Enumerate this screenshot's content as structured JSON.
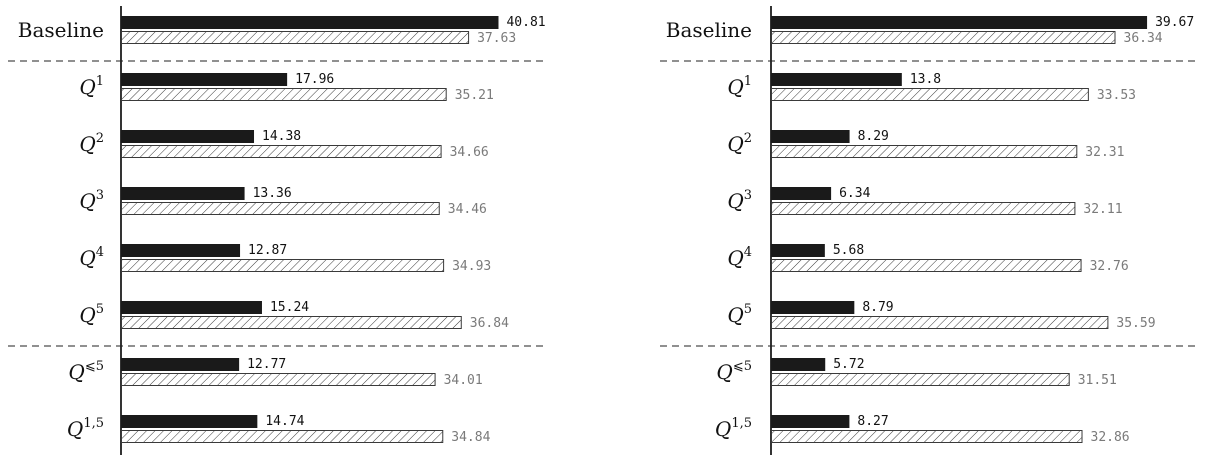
{
  "chart_data": [
    {
      "type": "bar",
      "orientation": "horizontal",
      "categories": [
        {
          "base": "Baseline",
          "sup": ""
        },
        {
          "base": "Q",
          "sup": "1"
        },
        {
          "base": "Q",
          "sup": "2"
        },
        {
          "base": "Q",
          "sup": "3"
        },
        {
          "base": "Q",
          "sup": "4"
        },
        {
          "base": "Q",
          "sup": "5"
        },
        {
          "base": "Q",
          "sup": "⩽5"
        },
        {
          "base": "Q",
          "sup": "1,5"
        }
      ],
      "series": [
        {
          "style": "solid",
          "values": [
            40.81,
            17.96,
            14.38,
            13.36,
            12.87,
            15.24,
            12.77,
            14.74
          ],
          "labels": [
            "40.81",
            "17.96",
            "14.38",
            "13.36",
            "12.87",
            "15.24",
            "12.77",
            "14.74"
          ]
        },
        {
          "style": "hatched",
          "values": [
            37.63,
            35.21,
            34.66,
            34.46,
            34.93,
            36.84,
            34.01,
            34.84
          ],
          "labels": [
            "37.63",
            "35.21",
            "34.66",
            "34.46",
            "34.93",
            "36.84",
            "34.01",
            "34.84"
          ]
        }
      ],
      "separators_after": [
        0,
        5
      ],
      "grid": false,
      "xlim": [
        0,
        42
      ]
    },
    {
      "type": "bar",
      "orientation": "horizontal",
      "categories": [
        {
          "base": "Baseline",
          "sup": ""
        },
        {
          "base": "Q",
          "sup": "1"
        },
        {
          "base": "Q",
          "sup": "2"
        },
        {
          "base": "Q",
          "sup": "3"
        },
        {
          "base": "Q",
          "sup": "4"
        },
        {
          "base": "Q",
          "sup": "5"
        },
        {
          "base": "Q",
          "sup": "⩽5"
        },
        {
          "base": "Q",
          "sup": "1,5"
        }
      ],
      "series": [
        {
          "style": "solid",
          "values": [
            39.67,
            13.8,
            8.29,
            6.34,
            5.68,
            8.79,
            5.72,
            8.27
          ],
          "labels": [
            "39.67",
            "13.8",
            "8.29",
            "6.34",
            "5.68",
            "8.79",
            "5.72",
            "8.27"
          ]
        },
        {
          "style": "hatched",
          "values": [
            36.34,
            33.53,
            32.31,
            32.11,
            32.76,
            35.59,
            31.51,
            32.86
          ],
          "labels": [
            "36.34",
            "33.53",
            "32.31",
            "32.11",
            "32.76",
            "35.59",
            "31.51",
            "32.86"
          ]
        }
      ],
      "separators_after": [
        0,
        5
      ],
      "grid": false,
      "xlim": [
        0,
        40
      ]
    }
  ],
  "colors": {
    "solid": "#1a1a1a",
    "hatch_stroke": "#3a3a3a",
    "hatch_value_text": "#7a7a7a",
    "axis": "#000000"
  }
}
